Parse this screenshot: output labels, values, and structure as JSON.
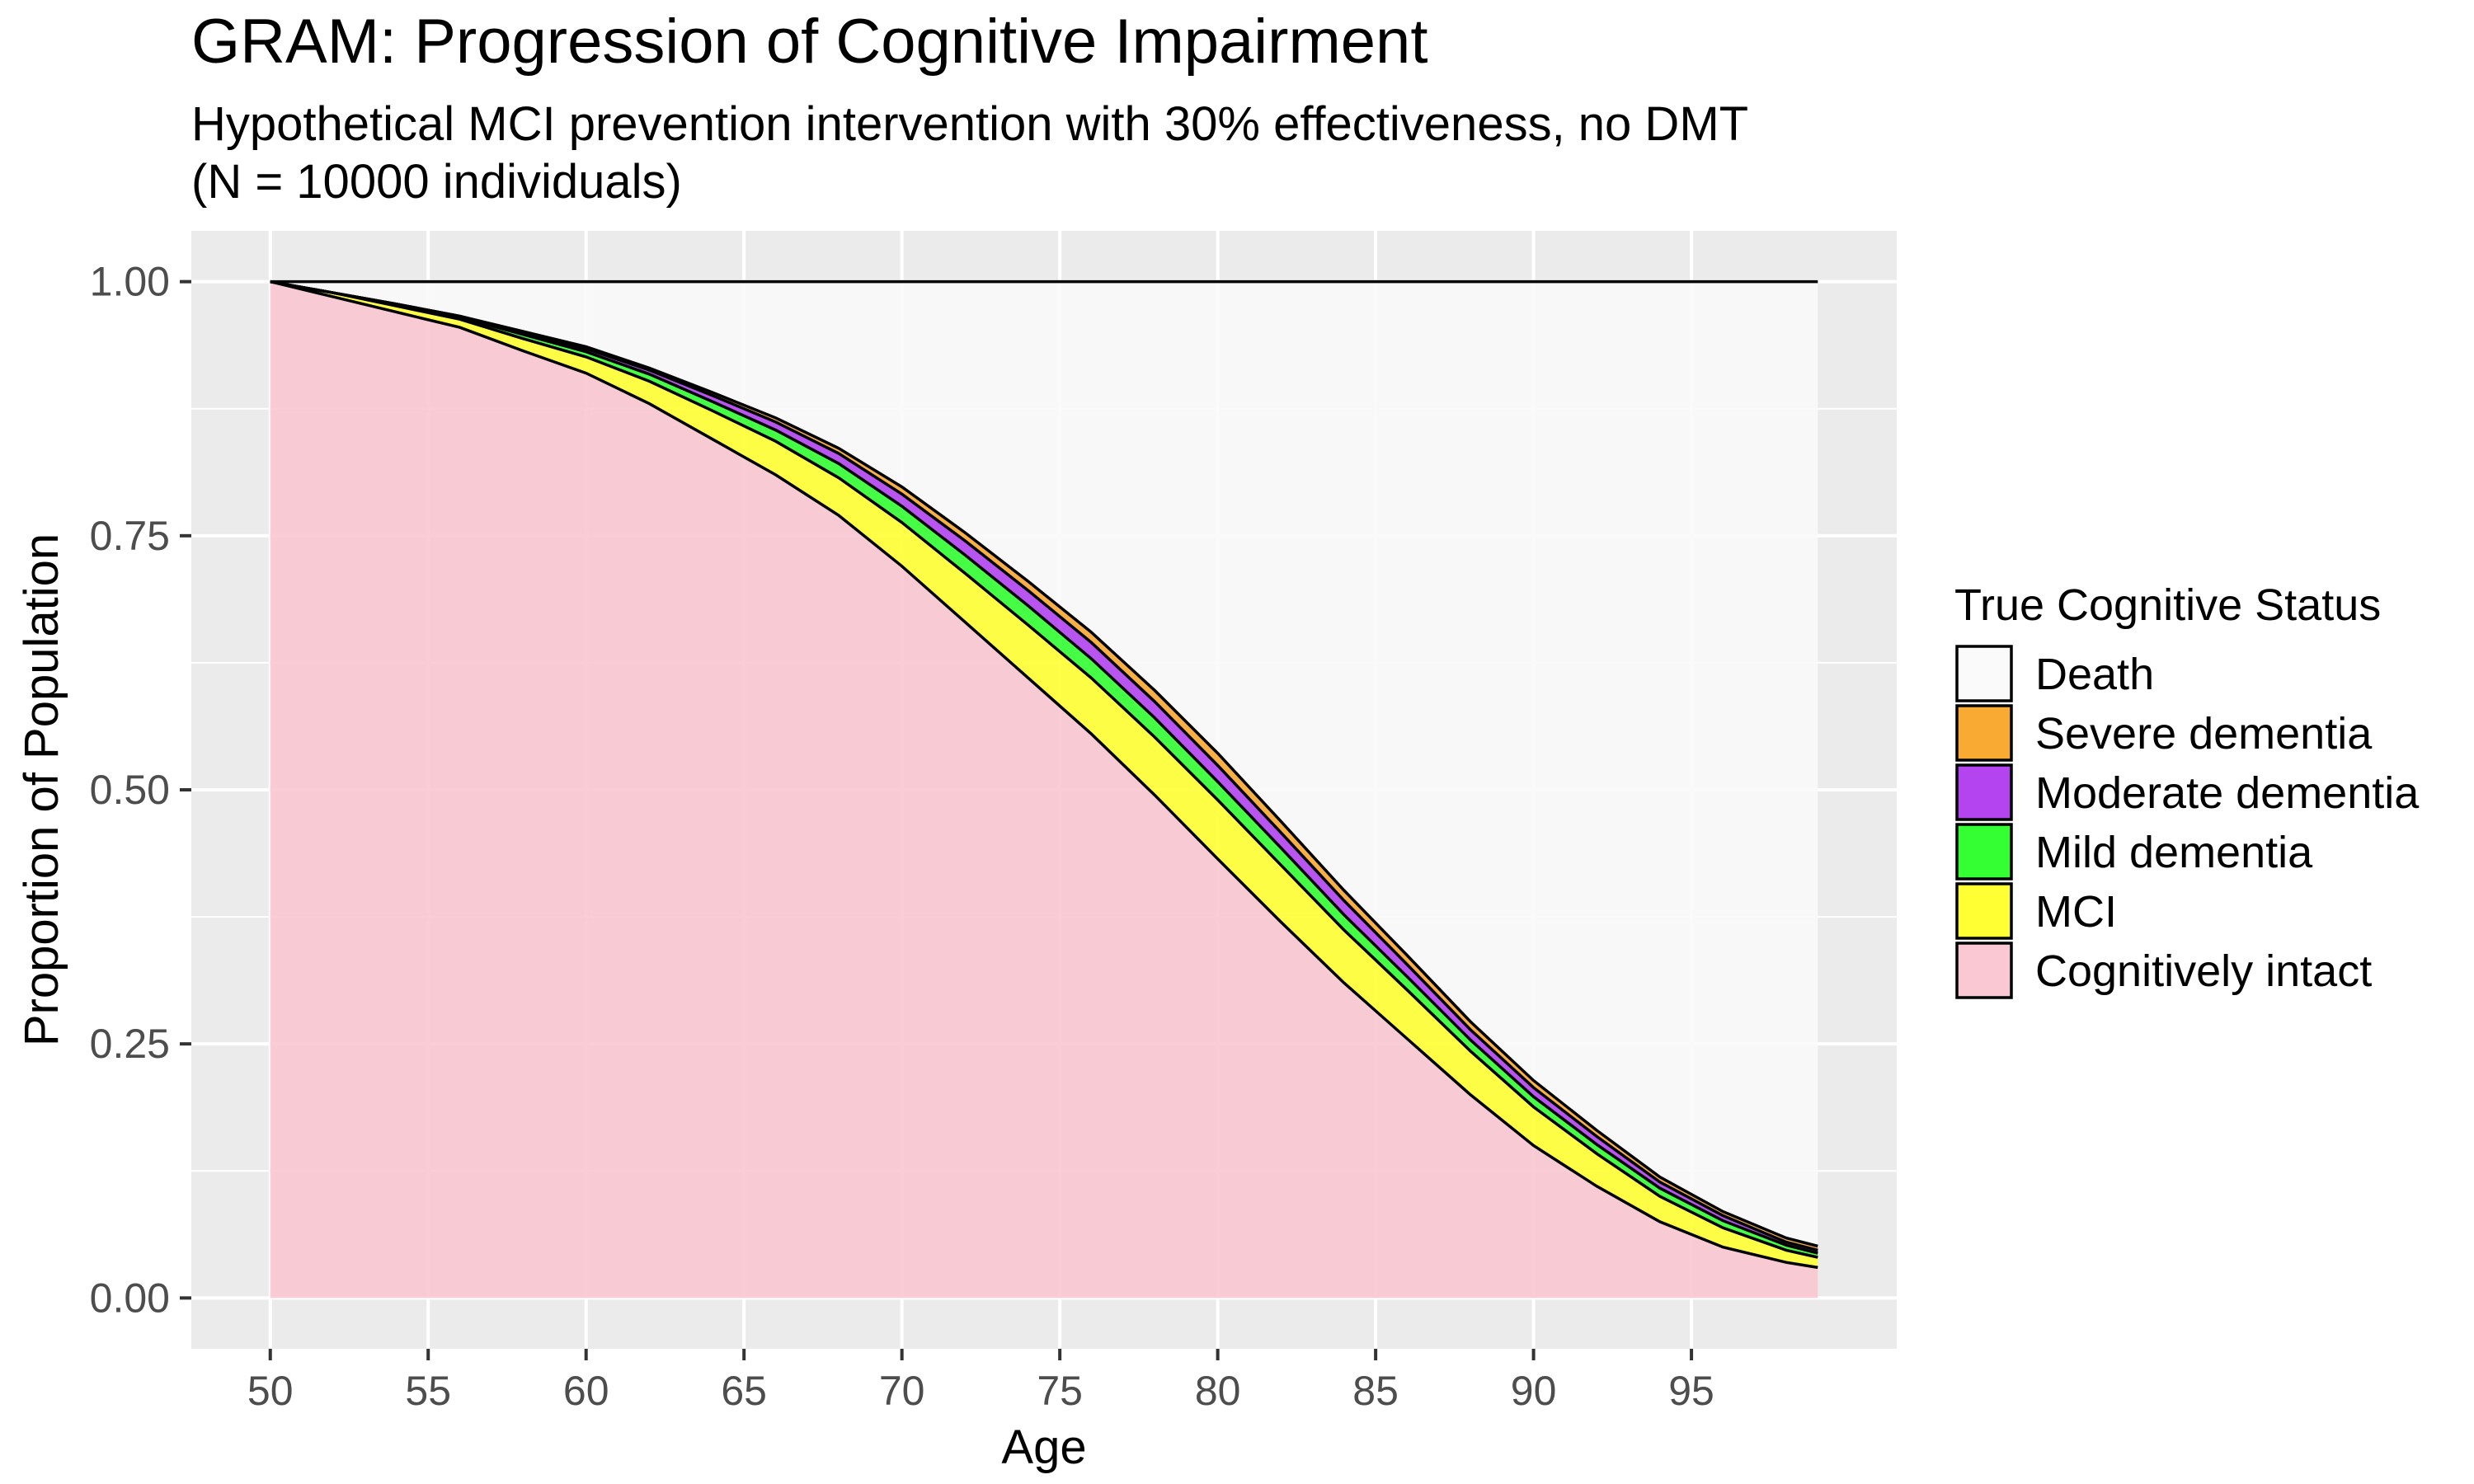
{
  "chart_data": {
    "type": "area",
    "title": "GRAM: Progression of Cognitive Impairment",
    "subtitle_line1": "Hypothetical MCI prevention intervention with 30% effectiveness, no DMT",
    "subtitle_line2": "(N = 10000 individuals)",
    "xlabel": "Age",
    "ylabel": "Proportion of Population",
    "xlim": [
      47.5,
      101.5
    ],
    "ylim": [
      -0.05,
      1.05
    ],
    "x_ticks": [
      50,
      55,
      60,
      65,
      70,
      75,
      80,
      85,
      90,
      95
    ],
    "y_ticks": [
      0,
      0.25,
      0.5,
      0.75,
      1.0
    ],
    "y_tick_labels": [
      "0.00",
      "0.25",
      "0.50",
      "0.75",
      "1.00"
    ],
    "grid": true,
    "stacked": true,
    "legend": {
      "title": "True Cognitive Status",
      "position": "right",
      "entries": [
        "Death",
        "Severe dementia",
        "Moderate dementia",
        "Mild dementia",
        "MCI",
        "Cognitively intact"
      ]
    },
    "x": [
      50,
      52,
      54,
      56,
      58,
      60,
      62,
      64,
      66,
      68,
      70,
      72,
      74,
      76,
      78,
      80,
      82,
      84,
      86,
      88,
      90,
      92,
      94,
      96,
      98,
      99
    ],
    "series": [
      {
        "name": "Cognitively intact",
        "color": "#F9C8D2",
        "values": [
          1.0,
          0.985,
          0.97,
          0.955,
          0.932,
          0.91,
          0.88,
          0.845,
          0.81,
          0.77,
          0.72,
          0.665,
          0.61,
          0.555,
          0.495,
          0.432,
          0.37,
          0.31,
          0.255,
          0.2,
          0.15,
          0.11,
          0.075,
          0.05,
          0.035,
          0.03
        ]
      },
      {
        "name": "MCI",
        "color": "#FFFF33",
        "values": [
          0.0,
          0.004,
          0.006,
          0.008,
          0.012,
          0.016,
          0.022,
          0.028,
          0.033,
          0.037,
          0.043,
          0.048,
          0.052,
          0.055,
          0.057,
          0.058,
          0.056,
          0.052,
          0.048,
          0.043,
          0.038,
          0.032,
          0.025,
          0.019,
          0.012,
          0.01
        ]
      },
      {
        "name": "Mild dementia",
        "color": "#33FF33",
        "values": [
          0.0,
          0.0,
          0.002,
          0.002,
          0.004,
          0.005,
          0.007,
          0.009,
          0.011,
          0.014,
          0.016,
          0.018,
          0.019,
          0.019,
          0.019,
          0.018,
          0.017,
          0.015,
          0.013,
          0.011,
          0.01,
          0.009,
          0.008,
          0.007,
          0.005,
          0.004
        ]
      },
      {
        "name": "Moderate dementia",
        "color": "#B344F0",
        "values": [
          0.0,
          0.0,
          0.0,
          0.001,
          0.002,
          0.003,
          0.004,
          0.006,
          0.008,
          0.01,
          0.012,
          0.014,
          0.015,
          0.016,
          0.016,
          0.016,
          0.015,
          0.014,
          0.012,
          0.01,
          0.009,
          0.008,
          0.006,
          0.005,
          0.003,
          0.003
        ]
      },
      {
        "name": "Severe dementia",
        "color": "#F9AA33",
        "values": [
          0.0,
          0.0,
          0.0,
          0.0,
          0.001,
          0.002,
          0.002,
          0.003,
          0.004,
          0.005,
          0.007,
          0.008,
          0.009,
          0.01,
          0.011,
          0.012,
          0.011,
          0.01,
          0.009,
          0.008,
          0.007,
          0.006,
          0.005,
          0.004,
          0.004,
          0.004
        ]
      },
      {
        "name": "Death",
        "color": "#FAFAFA",
        "values": [
          0.0,
          0.011,
          0.022,
          0.034,
          0.049,
          0.064,
          0.085,
          0.109,
          0.134,
          0.164,
          0.202,
          0.247,
          0.295,
          0.345,
          0.402,
          0.464,
          0.531,
          0.599,
          0.663,
          0.728,
          0.786,
          0.835,
          0.881,
          0.915,
          0.941,
          0.949
        ]
      }
    ]
  }
}
